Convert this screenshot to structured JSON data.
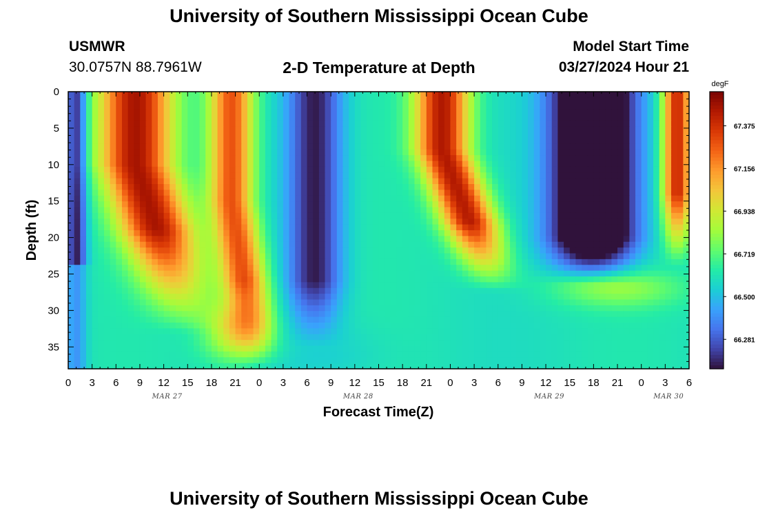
{
  "header": {
    "title": "University of Southern Mississippi Ocean Cube",
    "station_name": "USMWR",
    "station_coords": "30.0757N  88.7961W",
    "plot_title": "2-D Temperature at Depth",
    "model_label": "Model Start Time",
    "model_time": "03/27/2024 Hour 21"
  },
  "footer": {
    "title_repeat": "University of Southern Mississippi Ocean Cube"
  },
  "chart_data": {
    "type": "heatmap",
    "title": "2-D Temperature at Depth",
    "xlabel": "Forecast Time(Z)",
    "ylabel": "Depth (ft)",
    "colorbar_unit": "degF",
    "x_range_hours": [
      0,
      78
    ],
    "y_range_ft": [
      0,
      38
    ],
    "y_inverted": true,
    "x_ticks": [
      "0",
      "3",
      "6",
      "9",
      "12",
      "15",
      "18",
      "21",
      "0",
      "3",
      "6",
      "9",
      "12",
      "15",
      "18",
      "21",
      "0",
      "3",
      "6",
      "9",
      "12",
      "15",
      "18",
      "21",
      "0",
      "3",
      "6"
    ],
    "y_ticks": [
      0,
      5,
      10,
      15,
      20,
      25,
      30,
      35
    ],
    "date_labels": [
      {
        "label": "MAR 27",
        "hour": 12
      },
      {
        "label": "MAR 28",
        "hour": 36
      },
      {
        "label": "MAR 29",
        "hour": 60
      },
      {
        "label": "MAR 30",
        "hour": 75
      }
    ],
    "colorbar_ticks": [
      67.375,
      67.156,
      66.938,
      66.719,
      66.5,
      66.281
    ],
    "colorbar_range": [
      66.13,
      67.55
    ],
    "colormap": [
      "#30123b",
      "#4145ab",
      "#4675ed",
      "#39a2fc",
      "#1bcfd4",
      "#24eca6",
      "#61fc6c",
      "#a4fc3b",
      "#d1e834",
      "#f3c63a",
      "#fe9b2d",
      "#f36315",
      "#d93806",
      "#b11901",
      "#7a0403"
    ],
    "pattern_description": "Warm surface pulses (~67.4 degF) near hours 6-14, 18-25 and 73-78; cool blue/purple columns near hours 28-36 and 60-70; near-uniform 66.55-66.75 degF below ~25 ft."
  }
}
